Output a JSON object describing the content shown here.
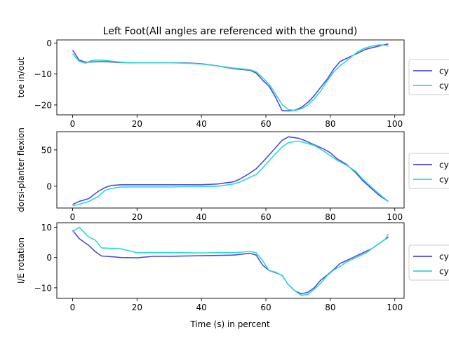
{
  "figure": {
    "title": "Left Foot(All angles are referenced with the ground)",
    "xlabel": "Time (s) in percent"
  },
  "colors": {
    "series1": "#4b4bdc",
    "series2": "#2fd8d8"
  },
  "legend_labels": [
    "cy",
    "cy"
  ],
  "chart_data": [
    {
      "type": "line",
      "ylabel": "toe in/out",
      "xlim": [
        -4.9,
        102.9
      ],
      "ylim": [
        -23.2,
        1.0
      ],
      "xticks": [
        "0",
        "20",
        "40",
        "60",
        "80",
        "100"
      ],
      "xtick_values": [
        0,
        20,
        40,
        60,
        80,
        100
      ],
      "yticks": [
        "0",
        "−10",
        "−20"
      ],
      "ytick_values": [
        0,
        -10,
        -20
      ],
      "legend": "right",
      "series": [
        {
          "x": [
            0,
            2,
            4,
            6,
            8,
            10,
            15,
            20,
            25,
            30,
            35,
            40,
            45,
            50,
            55,
            57,
            59,
            61,
            63,
            65,
            67,
            69,
            71,
            73,
            75,
            77,
            79,
            81,
            83,
            85,
            87,
            89,
            91,
            93,
            95,
            97,
            98
          ],
          "y": [
            -2.3,
            -5.5,
            -6.2,
            -6.1,
            -6.0,
            -6.0,
            -6.3,
            -6.4,
            -6.4,
            -6.4,
            -6.4,
            -6.7,
            -7.4,
            -8.3,
            -8.8,
            -9.7,
            -12.0,
            -14.0,
            -17.5,
            -21.8,
            -21.9,
            -21.7,
            -20.8,
            -19.2,
            -17.0,
            -14.3,
            -11.7,
            -8.5,
            -6.0,
            -5.0,
            -4.0,
            -3.0,
            -2.0,
            -1.5,
            -1.0,
            -0.5,
            -0.3
          ]
        },
        {
          "x": [
            0,
            2,
            4,
            6,
            8,
            10,
            15,
            20,
            25,
            30,
            35,
            40,
            45,
            50,
            55,
            57,
            59,
            61,
            63,
            65,
            67,
            69,
            71,
            73,
            75,
            77,
            79,
            81,
            83,
            85,
            87,
            89,
            91,
            93,
            95,
            97,
            98
          ],
          "y": [
            -3.5,
            -5.9,
            -6.5,
            -5.6,
            -5.5,
            -5.6,
            -6.2,
            -6.4,
            -6.4,
            -6.4,
            -6.5,
            -6.8,
            -7.4,
            -8.1,
            -8.6,
            -9.3,
            -11.2,
            -13.3,
            -16.5,
            -19.8,
            -21.5,
            -21.8,
            -21.2,
            -20.0,
            -18.0,
            -15.5,
            -12.3,
            -9.4,
            -7.4,
            -5.8,
            -4.0,
            -2.5,
            -1.5,
            -1.0,
            -0.6,
            -0.7,
            -1.0
          ]
        }
      ]
    },
    {
      "type": "line",
      "ylabel": "dorsi-planter flexion",
      "xlim": [
        -4.9,
        102.9
      ],
      "ylim": [
        -30,
        75
      ],
      "xticks": [
        "0",
        "20",
        "40",
        "60",
        "80",
        "100"
      ],
      "xtick_values": [
        0,
        20,
        40,
        60,
        80,
        100
      ],
      "yticks": [
        "0",
        "50"
      ],
      "ytick_values": [
        0,
        50
      ],
      "legend": "right",
      "series": [
        {
          "x": [
            0,
            2,
            5,
            8,
            10,
            12,
            15,
            20,
            30,
            40,
            45,
            50,
            52,
            55,
            57,
            60,
            62,
            65,
            67,
            70,
            72,
            75,
            78,
            80,
            82,
            85,
            88,
            90,
            92,
            95,
            98
          ],
          "y": [
            -25,
            -21,
            -17,
            -7,
            -2,
            1,
            2,
            2,
            2,
            2,
            3,
            6,
            10,
            18,
            24,
            38,
            48,
            63,
            68,
            66,
            63,
            57,
            51,
            46,
            38,
            30,
            18,
            8,
            0,
            -12,
            -21
          ]
        },
        {
          "x": [
            0,
            2,
            5,
            8,
            10,
            12,
            15,
            20,
            30,
            40,
            45,
            50,
            52,
            55,
            57,
            60,
            62,
            65,
            67,
            70,
            72,
            75,
            78,
            80,
            82,
            85,
            88,
            90,
            92,
            95,
            98
          ],
          "y": [
            -27,
            -25,
            -21,
            -14,
            -6,
            -3,
            -1,
            -1,
            -1,
            -0.5,
            0,
            3,
            6,
            12,
            16,
            30,
            40,
            54,
            60,
            62,
            60,
            56,
            48,
            42,
            36,
            29,
            20,
            10,
            2,
            -10,
            -21
          ]
        }
      ]
    },
    {
      "type": "line",
      "ylabel": "I/E rotation",
      "xlim": [
        -4.9,
        102.9
      ],
      "ylim": [
        -13.5,
        11.5
      ],
      "xticks": [
        "0",
        "20",
        "40",
        "60",
        "80",
        "100"
      ],
      "xtick_values": [
        0,
        20,
        40,
        60,
        80,
        100
      ],
      "xlabel": "Time (s) in percent",
      "yticks": [
        "10",
        "0",
        "−10"
      ],
      "ytick_values": [
        10,
        0,
        -10
      ],
      "legend": "right",
      "series": [
        {
          "x": [
            0,
            2,
            5,
            7,
            9,
            12,
            15,
            20,
            25,
            30,
            35,
            40,
            45,
            50,
            55,
            57,
            59,
            61,
            63,
            65,
            67,
            69,
            71,
            73,
            75,
            77,
            79,
            81,
            83,
            85,
            87,
            89,
            91,
            93,
            95,
            97,
            98
          ],
          "y": [
            9,
            6.3,
            4,
            2,
            0.5,
            0.3,
            0,
            -0.1,
            0.4,
            0.4,
            0.5,
            0.6,
            0.7,
            0.8,
            1.4,
            0.8,
            -2.5,
            -4.3,
            -5,
            -5.9,
            -9,
            -11,
            -12,
            -11.5,
            -10,
            -7.5,
            -5.8,
            -4,
            -2,
            -1,
            0,
            1,
            2,
            3,
            4.5,
            6,
            6.7
          ]
        },
        {
          "x": [
            0,
            2,
            5,
            7,
            9,
            12,
            15,
            20,
            25,
            30,
            35,
            40,
            45,
            50,
            55,
            57,
            59,
            61,
            63,
            65,
            67,
            69,
            71,
            73,
            75,
            77,
            79,
            81,
            83,
            85,
            87,
            89,
            91,
            93,
            95,
            97,
            98
          ],
          "y": [
            8.5,
            10,
            6.8,
            5.8,
            3.2,
            3,
            2.9,
            1.6,
            1.6,
            1.6,
            1.6,
            1.5,
            1.6,
            1.6,
            2,
            1.6,
            -1,
            -4.3,
            -4.8,
            -6,
            -9,
            -11,
            -12.5,
            -12.2,
            -10.5,
            -8.5,
            -6,
            -4.2,
            -3,
            -1.5,
            -0.5,
            0.5,
            1.5,
            3,
            4.5,
            6,
            7.7
          ]
        }
      ]
    }
  ]
}
